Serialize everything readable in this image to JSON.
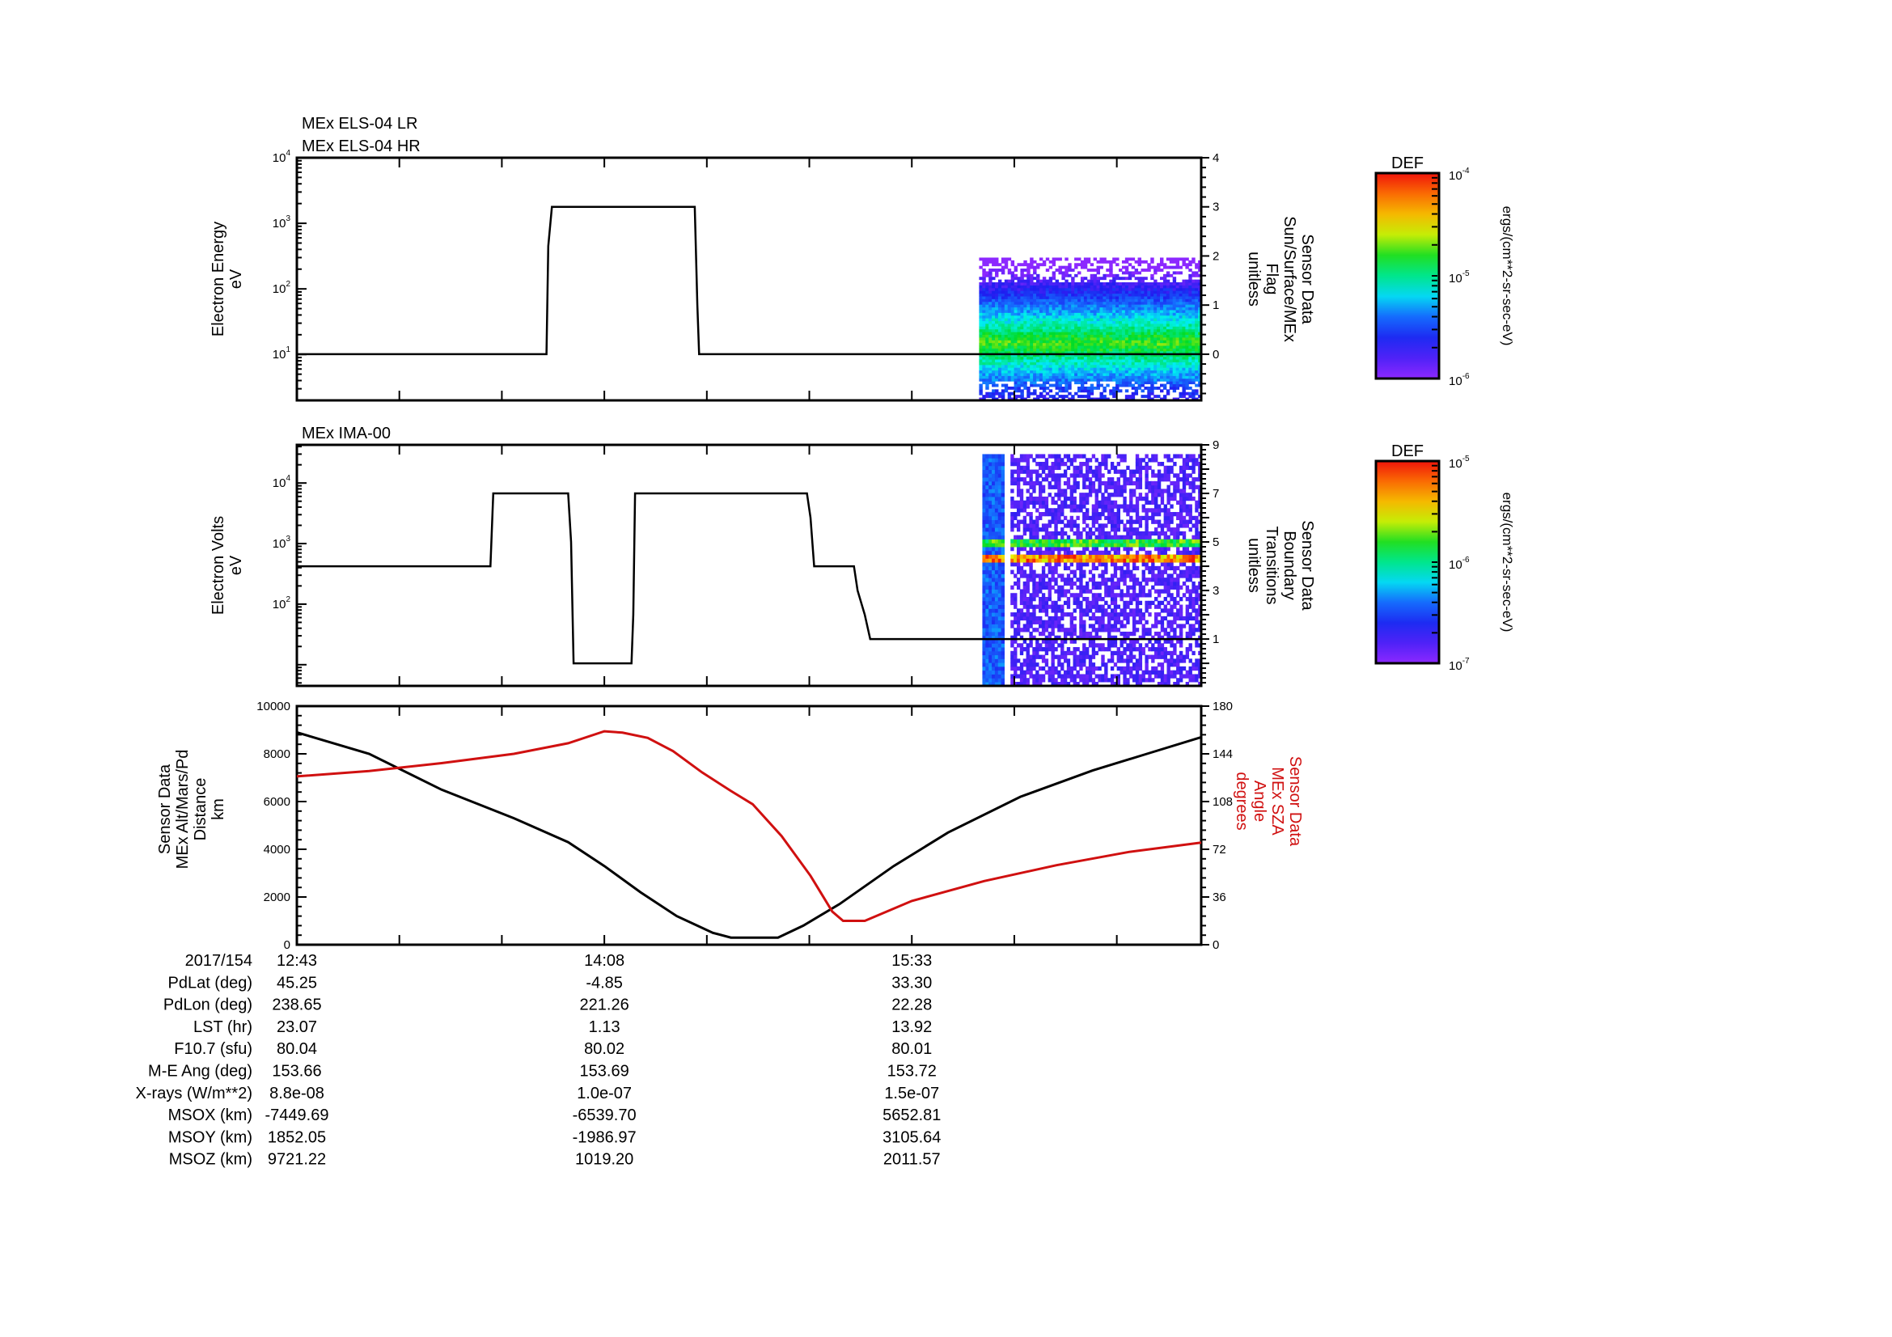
{
  "colors": {
    "line": "#000000",
    "sza": "#d01010"
  },
  "chart_data": [
    {
      "type": "heatmap",
      "titles": [
        "MEx ELS-04 LR",
        "MEx ELS-04 HR"
      ],
      "ylabel": [
        "Electron Energy",
        "eV"
      ],
      "y2label": [
        "Sensor Data",
        "Sun/Surface/MEx",
        "Flag",
        "unitless"
      ],
      "x_unit": "minutes since 12:43",
      "xlim": [
        0,
        250
      ],
      "ylim_log10": [
        0.3,
        4
      ],
      "yticks": [
        {
          "base": "10",
          "exp": "4",
          "v": 4
        },
        {
          "base": "10",
          "exp": "3",
          "v": 3
        },
        {
          "base": "10",
          "exp": "2",
          "v": 2
        },
        {
          "base": "10",
          "exp": "1",
          "v": 1
        }
      ],
      "y2lim": [
        -0.94,
        4
      ],
      "y2ticks": [
        "0",
        "1",
        "2",
        "3",
        "4"
      ],
      "line": {
        "name": "Sun/Surface/MEx Flag",
        "axis": "right",
        "points": [
          [
            0,
            0
          ],
          [
            69,
            0
          ],
          [
            69.5,
            2.2
          ],
          [
            70.5,
            3
          ],
          [
            110,
            3
          ],
          [
            110.7,
            1
          ],
          [
            111.2,
            0
          ],
          [
            250,
            0
          ]
        ]
      },
      "spectrogram": {
        "start": 188.6,
        "end": 250,
        "energy_range_eV": [
          2,
          300
        ],
        "peak_energy_eV": 15,
        "peak_log10_def": -4.6
      },
      "colorbar": {
        "label": "DEF",
        "units": "ergs/(cm**2-sr-sec-eV)",
        "ticks": [
          {
            "base": "10",
            "exp": "-4"
          },
          {
            "base": "10",
            "exp": "-5"
          },
          {
            "base": "10",
            "exp": "-6"
          }
        ],
        "range_log10": [
          -6,
          -4
        ]
      }
    },
    {
      "type": "heatmap",
      "titles": [
        "MEx IMA-00"
      ],
      "ylabel": [
        "Electron Volts",
        "eV"
      ],
      "y2label": [
        "Sensor Data",
        "Boundary",
        "Transitions",
        "unitless"
      ],
      "x_unit": "minutes since 12:43",
      "xlim": [
        0,
        250
      ],
      "ylim_log10": [
        0.65,
        4.63
      ],
      "yticks": [
        {
          "base": "10",
          "exp": "4",
          "v": 4
        },
        {
          "base": "10",
          "exp": "3",
          "v": 3
        },
        {
          "base": "10",
          "exp": "2",
          "v": 2
        }
      ],
      "y2lim": [
        -0.93,
        9
      ],
      "y2ticks": [
        "1",
        "3",
        "5",
        "7",
        "9"
      ],
      "line": {
        "name": "Boundary Transitions",
        "axis": "right",
        "points": [
          [
            0,
            4
          ],
          [
            53.5,
            4
          ],
          [
            54.3,
            7
          ],
          [
            75,
            7
          ],
          [
            75.8,
            5
          ],
          [
            76.5,
            0
          ],
          [
            92.5,
            0
          ],
          [
            93,
            2
          ],
          [
            93.5,
            7
          ],
          [
            141,
            7
          ],
          [
            142,
            6
          ],
          [
            143,
            4
          ],
          [
            154,
            4
          ],
          [
            155,
            3
          ],
          [
            157,
            2
          ],
          [
            158.5,
            1
          ],
          [
            250,
            1
          ]
        ]
      },
      "spectrogram": {
        "start": 189.5,
        "end": 250,
        "energy_range_eV": [
          4.5,
          30000
        ],
        "bands_eV": [
          1000,
          550
        ],
        "gap_minutes": [
          195.5,
          197
        ]
      },
      "colorbar": {
        "label": "DEF",
        "units": "ergs/(cm**2-sr-sec-eV)",
        "ticks": [
          {
            "base": "10",
            "exp": "-5"
          },
          {
            "base": "10",
            "exp": "-6"
          },
          {
            "base": "10",
            "exp": "-7"
          }
        ],
        "range_log10": [
          -7,
          -5
        ]
      }
    },
    {
      "type": "line",
      "ylabel": [
        "Sensor Data",
        "MEx Alt/Mars/Pd",
        "Distance",
        "km"
      ],
      "y2label": [
        "Sensor Data",
        "MEx SZA",
        "Angle",
        "degrees"
      ],
      "x_unit": "minutes since 12:43",
      "xlim": [
        0,
        250
      ],
      "ylim": [
        0,
        10000
      ],
      "yticks": [
        "0",
        "2000",
        "4000",
        "6000",
        "8000",
        "10000"
      ],
      "y2lim": [
        0,
        180
      ],
      "y2ticks": [
        "0",
        "36",
        "72",
        "108",
        "144",
        "180"
      ],
      "series": [
        {
          "name": "MEx Alt/Mars/Pd Distance (km)",
          "axis": "left",
          "color": "#000000",
          "points": [
            [
              0,
              8900
            ],
            [
              20,
              8000
            ],
            [
              40,
              6500
            ],
            [
              60,
              5300
            ],
            [
              75,
              4300
            ],
            [
              85,
              3300
            ],
            [
              95,
              2200
            ],
            [
              105,
              1200
            ],
            [
              115,
              500
            ],
            [
              120,
              300
            ],
            [
              133,
              300
            ],
            [
              140,
              800
            ],
            [
              150,
              1700
            ],
            [
              165,
              3300
            ],
            [
              180,
              4700
            ],
            [
              200,
              6200
            ],
            [
              220,
              7300
            ],
            [
              235,
              8000
            ],
            [
              250,
              8700
            ]
          ]
        },
        {
          "name": "MEx SZA Angle (degrees)",
          "axis": "right",
          "color": "#d01010",
          "points": [
            [
              0,
              127
            ],
            [
              20,
              131
            ],
            [
              40,
              137
            ],
            [
              60,
              144
            ],
            [
              75,
              152
            ],
            [
              85,
              161
            ],
            [
              90,
              160
            ],
            [
              97,
              156
            ],
            [
              104,
              146
            ],
            [
              112,
              130
            ],
            [
              120,
              116
            ],
            [
              126,
              106
            ],
            [
              134,
              82
            ],
            [
              142,
              52
            ],
            [
              148,
              25
            ],
            [
              151,
              18
            ],
            [
              157,
              18
            ],
            [
              170,
              33
            ],
            [
              190,
              48
            ],
            [
              210,
              60
            ],
            [
              230,
              70
            ],
            [
              250,
              77
            ]
          ]
        }
      ]
    }
  ],
  "ephemeris": {
    "columns_minutes": [
      0,
      85,
      170
    ],
    "rows": [
      {
        "label": "2017/154",
        "values": [
          "12:43",
          "14:08",
          "15:33"
        ]
      },
      {
        "label": "PdLat (deg)",
        "values": [
          "45.25",
          "-4.85",
          "33.30"
        ]
      },
      {
        "label": "PdLon (deg)",
        "values": [
          "238.65",
          "221.26",
          "22.28"
        ]
      },
      {
        "label": "LST (hr)",
        "values": [
          "23.07",
          "1.13",
          "13.92"
        ]
      },
      {
        "label": "F10.7 (sfu)",
        "values": [
          "80.04",
          "80.02",
          "80.01"
        ]
      },
      {
        "label": "M-E Ang (deg)",
        "values": [
          "153.66",
          "153.69",
          "153.72"
        ]
      },
      {
        "label": "X-rays (W/m**2)",
        "values": [
          "8.8e-08",
          "1.0e-07",
          "1.5e-07"
        ]
      },
      {
        "label": "MSOX (km)",
        "values": [
          "-7449.69",
          "-6539.70",
          "5652.81"
        ]
      },
      {
        "label": "MSOY (km)",
        "values": [
          "1852.05",
          "-1986.97",
          "3105.64"
        ]
      },
      {
        "label": "MSOZ (km)",
        "values": [
          "9721.22",
          "1019.20",
          "2011.57"
        ]
      }
    ]
  }
}
